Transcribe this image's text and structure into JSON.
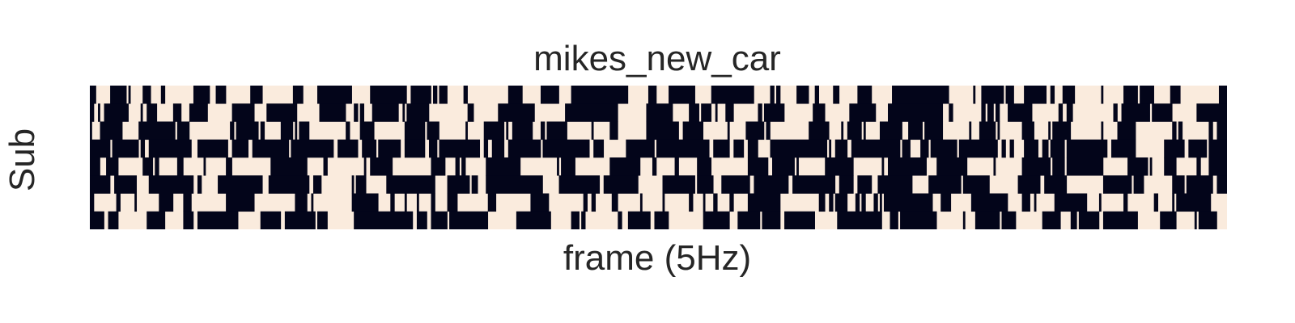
{
  "chart_data": {
    "type": "heatmap",
    "title": "mikes_new_car",
    "xlabel": "frame (5Hz)",
    "ylabel": "Sub",
    "n_rows": 8,
    "n_frames": 560,
    "value_colors": {
      "0": "#faebdd",
      "1": "#03051a"
    },
    "colorbar": false,
    "row_patterns": [
      [
        3,
        2,
        1,
        3,
        0,
        2,
        2,
        1,
        0,
        0,
        1,
        0,
        2,
        1,
        3,
        0,
        1,
        2,
        2,
        1
      ],
      [
        1,
        3,
        0,
        2,
        2,
        1,
        0,
        3,
        2,
        0,
        1,
        1,
        2,
        0,
        3,
        1,
        2,
        0,
        2,
        1
      ],
      [
        0,
        2,
        1,
        0,
        2,
        3,
        1,
        0,
        0,
        2,
        1,
        3,
        0,
        0,
        1,
        2,
        0,
        3,
        1,
        0
      ],
      [
        3,
        3,
        2,
        3,
        1,
        3,
        3,
        2,
        3,
        3,
        1,
        3,
        2,
        3,
        3,
        3,
        2,
        1,
        3,
        3
      ],
      [
        1,
        0,
        2,
        0,
        1,
        3,
        0,
        1,
        2,
        0,
        0,
        1,
        3,
        0,
        2,
        1,
        0,
        0,
        2,
        1
      ],
      [
        2,
        3,
        1,
        2,
        3,
        0,
        2,
        2,
        3,
        1,
        2,
        3,
        1,
        0,
        2,
        3,
        2,
        1,
        3,
        2
      ],
      [
        0,
        1,
        0,
        2,
        0,
        1,
        3,
        0,
        1,
        0,
        2,
        0,
        1,
        3,
        0,
        0,
        2,
        1,
        0,
        1
      ],
      [
        1,
        3,
        2,
        1,
        3,
        0,
        1,
        3,
        2,
        0,
        3,
        1,
        2,
        3,
        1,
        0,
        3,
        2,
        1,
        3
      ]
    ]
  }
}
